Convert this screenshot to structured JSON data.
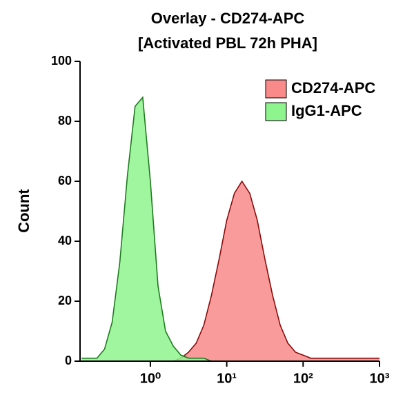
{
  "chart_data": {
    "type": "area",
    "title": "Overlay - CD274-APC",
    "subtitle": "[Activated PBL 72h PHA]",
    "y_label": "Count",
    "x": [
      0.126,
      0.158,
      0.2,
      0.251,
      0.316,
      0.398,
      0.501,
      0.631,
      0.794,
      1,
      1.26,
      1.58,
      2,
      2.51,
      3.16,
      3.98,
      5.01,
      6.31,
      7.94,
      10,
      12.6,
      15.8,
      20,
      25.1,
      31.6,
      39.8,
      50.1,
      63.1,
      79.4,
      100,
      126,
      158,
      200,
      251,
      316,
      398,
      501,
      631,
      794,
      1000
    ],
    "series": [
      {
        "name": "CD274-APC",
        "color": "#f98a8a",
        "line_color": "#8b0a0a",
        "values": [
          0,
          0,
          0,
          0,
          0,
          0,
          0,
          0,
          0,
          0,
          0,
          0,
          0,
          1,
          3,
          6,
          12,
          22,
          34,
          47,
          56,
          60,
          56,
          47,
          34,
          22,
          12,
          6,
          3,
          2,
          1,
          1,
          1,
          1,
          1,
          1,
          1,
          1,
          1,
          1
        ]
      },
      {
        "name": "IgG1-APC",
        "color": "#8ef58e",
        "line_color": "#1f7a1f",
        "values": [
          1,
          1,
          1,
          4,
          13,
          33,
          62,
          85,
          88,
          60,
          25,
          10,
          5,
          2,
          1,
          1,
          1,
          0,
          0,
          0,
          0,
          0,
          0,
          0,
          0,
          0,
          0,
          0,
          0,
          0,
          0,
          0,
          0,
          0,
          0,
          0,
          0,
          0,
          0,
          0
        ]
      }
    ],
    "xlim": [
      0.12,
      1000
    ],
    "log_x": true,
    "xticks": [
      {
        "value": 1,
        "label": "10⁰"
      },
      {
        "value": 10,
        "label": "10¹"
      },
      {
        "value": 100,
        "label": "10²"
      },
      {
        "value": 1000,
        "label": "10³"
      }
    ],
    "ylim": [
      0,
      100
    ],
    "yticks": [
      0,
      20,
      40,
      60,
      80,
      100
    ],
    "legend": "top-right"
  }
}
